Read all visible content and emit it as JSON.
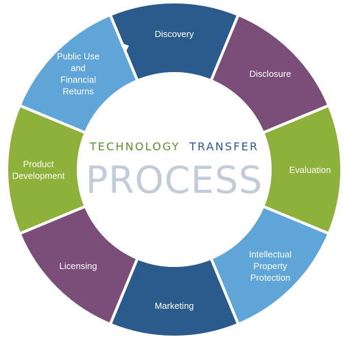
{
  "diagram": {
    "title_part1": "TECHNOLOGY",
    "title_part2": "TRANSFER",
    "title_main": "PROCESS",
    "colors": {
      "title_part1": "#5e8f2e",
      "title_part2": "#2b5a8c",
      "title_main": "#c4cbd8"
    },
    "segments": [
      {
        "id": "discovery",
        "lines": [
          "Discovery"
        ],
        "color": "#2b5a8c"
      },
      {
        "id": "disclosure",
        "lines": [
          "Disclosure"
        ],
        "color": "#7b4e7a"
      },
      {
        "id": "evaluation",
        "lines": [
          "Evaluation"
        ],
        "color": "#8db13a"
      },
      {
        "id": "ip",
        "lines": [
          "Intellectual",
          "Property",
          "Protection"
        ],
        "color": "#5fa5d8"
      },
      {
        "id": "marketing",
        "lines": [
          "Marketing"
        ],
        "color": "#2b5a8c"
      },
      {
        "id": "licensing",
        "lines": [
          "Licensing"
        ],
        "color": "#7b4e7a"
      },
      {
        "id": "product",
        "lines": [
          "Product",
          "Development"
        ],
        "color": "#8db13a"
      },
      {
        "id": "public-use",
        "lines": [
          "Public Use",
          "and",
          "Financial",
          "Returns"
        ],
        "color": "#5fa5d8"
      }
    ]
  }
}
